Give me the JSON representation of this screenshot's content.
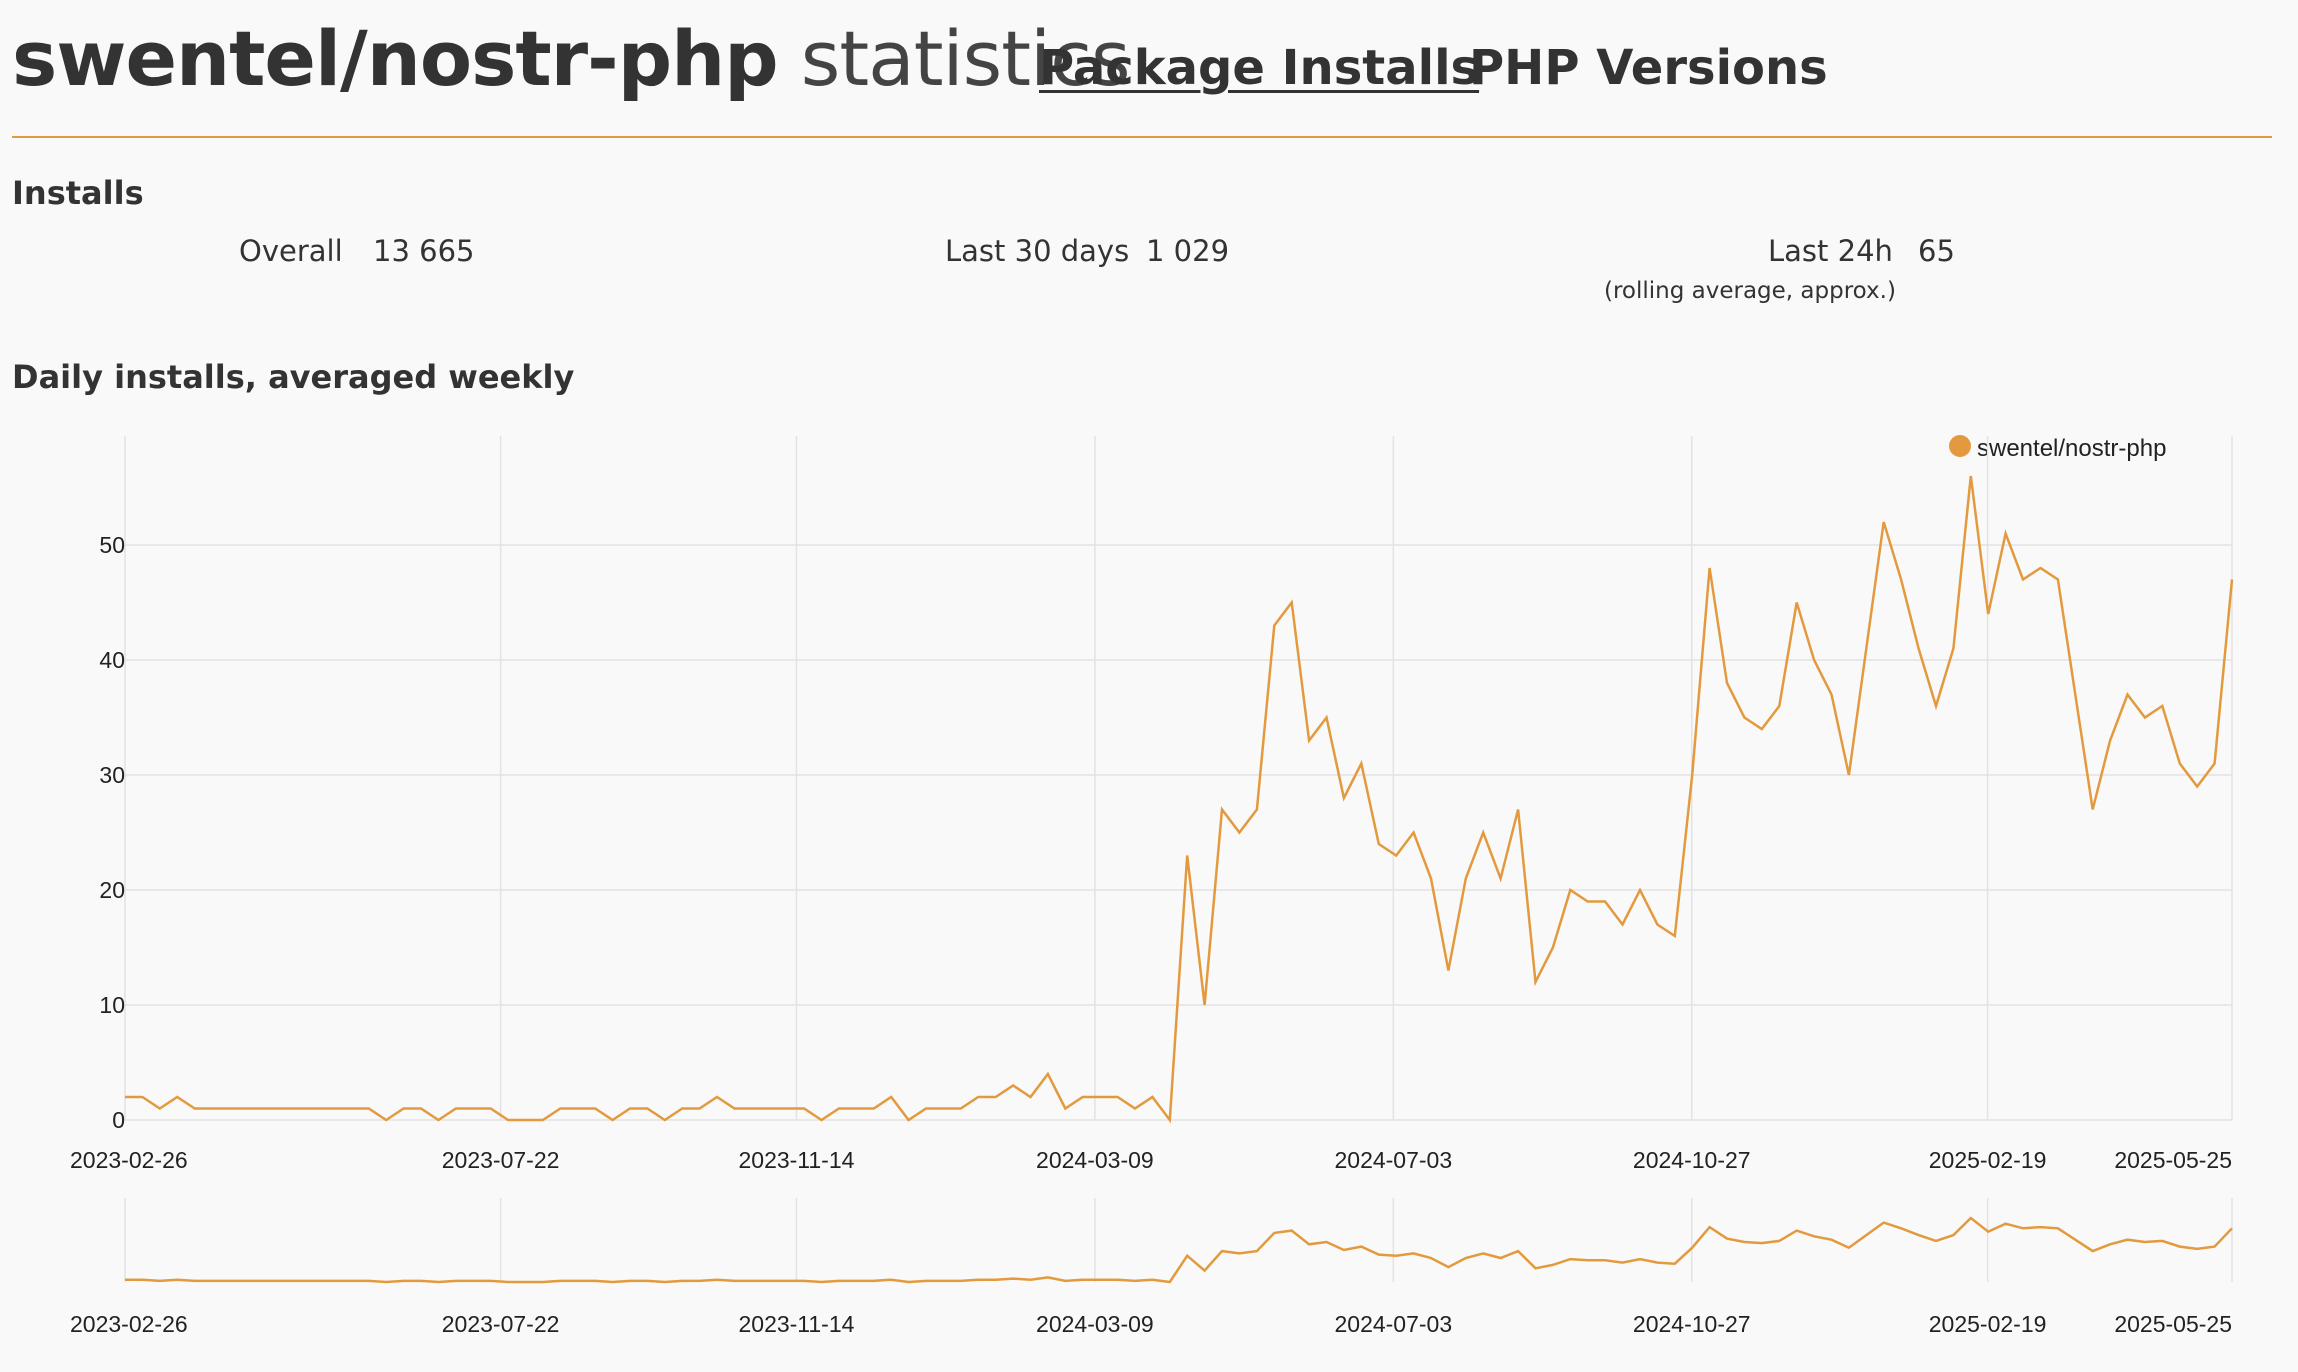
{
  "header": {
    "package_name": "swentel/nostr-php",
    "title_suffix": "statistics",
    "nav": [
      {
        "label": "Package Installs",
        "active": true
      },
      {
        "label": "PHP Versions",
        "active": false
      }
    ]
  },
  "installs": {
    "heading": "Installs",
    "overall_label": "Overall",
    "overall_value": "13 665",
    "last30_label": "Last 30 days",
    "last30_value": "1 029",
    "last24_label": "Last 24h",
    "last24_value": "65",
    "last24_note": "(rolling average, approx.)"
  },
  "colors": {
    "accent": "#e39a3e",
    "grid": "#e3e3e3"
  },
  "chart_data": {
    "type": "line",
    "title": "Daily installs, averaged weekly",
    "xlabel": "",
    "ylabel": "",
    "ylim": [
      0,
      56
    ],
    "yticks": [
      0,
      10,
      20,
      30,
      40,
      50
    ],
    "xtick_labels": [
      "2023-02-26",
      "2023-07-22",
      "2023-11-14",
      "2024-03-09",
      "2024-07-03",
      "2024-10-27",
      "2025-02-19",
      "2025-05-25"
    ],
    "legend_position": "top-right",
    "grid": true,
    "x_start": "2023-02-26",
    "x_end": "2025-05-25",
    "x_step": "weekly",
    "series": [
      {
        "name": "swentel/nostr-php",
        "color": "#e39a3e",
        "values": [
          2,
          2,
          1,
          2,
          1,
          1,
          1,
          1,
          1,
          1,
          1,
          1,
          1,
          1,
          1,
          0,
          1,
          1,
          0,
          1,
          1,
          1,
          0,
          0,
          0,
          1,
          1,
          1,
          0,
          1,
          1,
          0,
          1,
          1,
          2,
          1,
          1,
          1,
          1,
          1,
          0,
          1,
          1,
          1,
          2,
          0,
          1,
          1,
          1,
          2,
          2,
          3,
          2,
          4,
          1,
          2,
          2,
          2,
          1,
          2,
          0,
          23,
          10,
          27,
          25,
          27,
          43,
          45,
          33,
          35,
          28,
          31,
          24,
          23,
          25,
          21,
          13,
          21,
          25,
          21,
          27,
          12,
          15,
          20,
          19,
          19,
          17,
          20,
          17,
          16,
          30,
          48,
          38,
          35,
          34,
          36,
          45,
          40,
          37,
          30,
          41,
          52,
          47,
          41,
          36,
          41,
          56,
          44,
          51,
          47,
          48,
          47,
          37,
          27,
          33,
          37,
          35,
          36,
          31,
          29,
          31,
          47
        ]
      }
    ],
    "navigator": true
  }
}
